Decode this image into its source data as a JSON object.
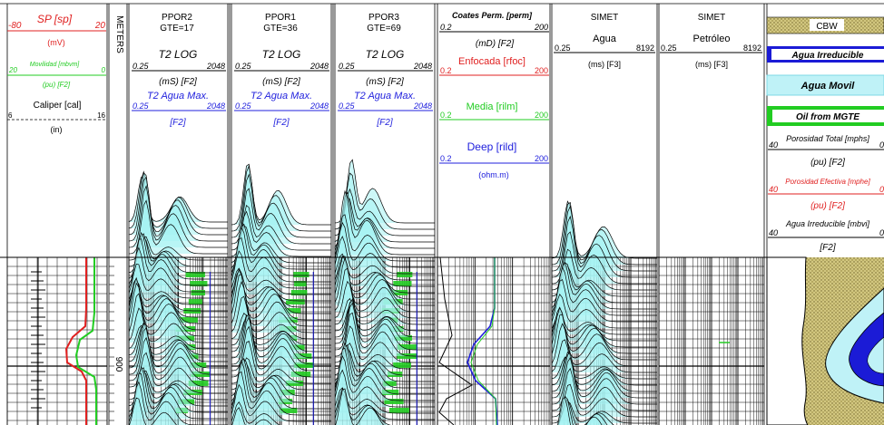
{
  "colors": {
    "sp": "#e02020",
    "mobility": "#22cc22",
    "caliper": "#000000",
    "t2": "#000000",
    "t2max": "#2020dd",
    "rfoc": "#e02020",
    "rilm": "#22cc22",
    "rild": "#2020dd",
    "wave_fill": "#a6f2f2",
    "wave_line": "#000000",
    "green_fill": "#22cc22",
    "grid": "#000000",
    "cbw_band": "#cbbf68",
    "agua_irred_band": "#1b1bd6",
    "agua_movil_band": "#bff2f7",
    "oil_band": "#22cc22"
  },
  "track1": {
    "sp": {
      "title": "SP [sp]",
      "min": "-80",
      "max": "20"
    },
    "sp_unit": "(mV)",
    "mobility": {
      "title": "Movilidad [mbvm]",
      "min": "20",
      "max": "0"
    },
    "mobility_unit": "(pu) [F2]",
    "caliper": {
      "title": "Caliper [cal]",
      "min": "6",
      "max": "16"
    },
    "caliper_unit": "(in)"
  },
  "depth_track": {
    "title": "METERS",
    "depth_label": "900"
  },
  "ppor_tracks": [
    {
      "title": "PPOR2",
      "gte": "GTE=17"
    },
    {
      "title": "PPOR1",
      "gte": "GTE=36"
    },
    {
      "title": "PPOR3",
      "gte": "GTE=69"
    }
  ],
  "t2_header": {
    "log_title": "T2 LOG",
    "log_min": "0.25",
    "log_max": "2048",
    "log_unit": "(mS) [F2]",
    "max_title": "T2 Agua Max.",
    "max_min": "0.25",
    "max_max": "2048",
    "max_unit": "[F2]"
  },
  "res_track": {
    "coates": {
      "title": "Coates Perm. [perm]",
      "min": "0.2",
      "max": "200"
    },
    "coates_unit": "(mD) [F2]",
    "rfoc": {
      "title": "Enfocada [rfoc]",
      "min": "0.2",
      "max": "200"
    },
    "rilm": {
      "title": "Media [rilm]",
      "min": "0.2",
      "max": "200"
    },
    "rild": {
      "title": "Deep [rild]",
      "min": "0.2",
      "max": "200"
    },
    "rild_unit": "(ohm.m)"
  },
  "simet_tracks": [
    {
      "title": "SIMET",
      "sub": "Agua",
      "min": "0.25",
      "max": "8192",
      "unit": "(ms) [F3]"
    },
    {
      "title": "SIMET",
      "sub": "Petróleo",
      "min": "0.25",
      "max": "8192",
      "unit": "(ms) [F3]"
    }
  ],
  "poro_track": {
    "cbw": "CBW",
    "agua_irred": "Agua Irreducible",
    "agua_movil": "Agua Movil",
    "oil": "Oil  from MGTE",
    "pt": {
      "title": "Porosidad Total [mphs]",
      "min": "40",
      "max": "0"
    },
    "pt_unit": "(pu) [F2]",
    "pe": {
      "title": "Porosidad Efectiva [mphe]",
      "min": "40",
      "max": "0"
    },
    "pe_unit": "(pu) [F2]",
    "ai": {
      "title": "Agua Irreducible [mbvi]",
      "min": "40",
      "max": "0"
    },
    "ai_unit": "[F2]"
  }
}
